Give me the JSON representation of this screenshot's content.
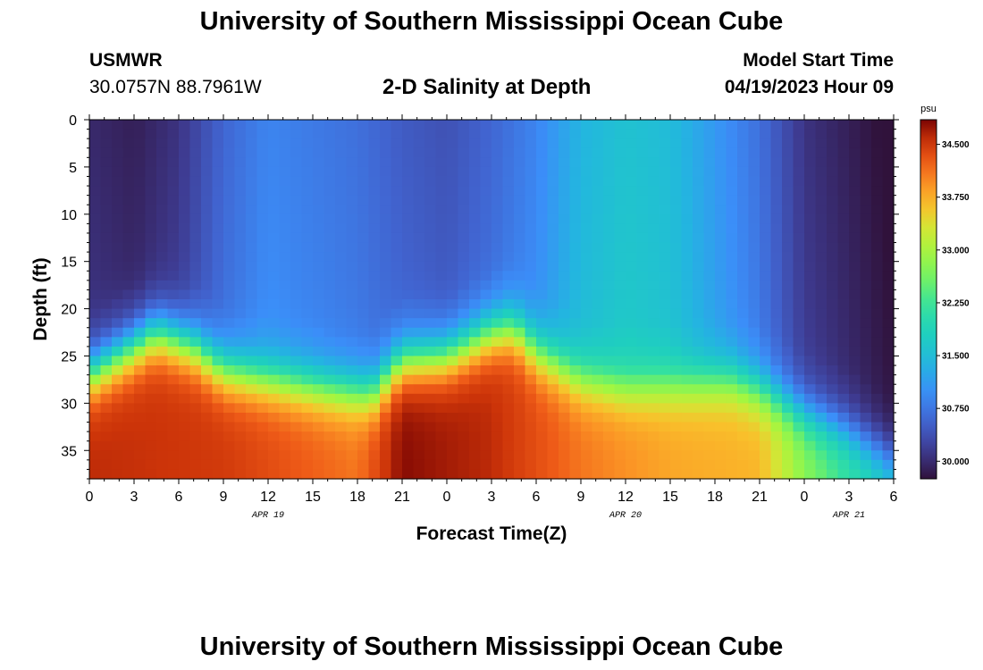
{
  "header": {
    "title": "University of Southern Mississippi Ocean Cube",
    "station": "USMWR",
    "coords": "30.0757N  88.7961W",
    "plot_title": "2-D Salinity at Depth",
    "start_label": "Model Start Time",
    "start_time": "04/19/2023 Hour 09"
  },
  "footer": {
    "title": "University of Southern Mississippi Ocean Cube"
  },
  "chart_data": {
    "type": "heatmap",
    "title": "2-D Salinity at Depth",
    "xlabel": "Forecast Time(Z)",
    "ylabel": "Depth (ft)",
    "x_tick_labels": [
      "0",
      "3",
      "6",
      "9",
      "12",
      "15",
      "18",
      "21",
      "0",
      "3",
      "6",
      "9",
      "12",
      "15",
      "18",
      "21",
      "0",
      "3",
      "6"
    ],
    "x_hours": [
      0,
      3,
      6,
      9,
      12,
      15,
      18,
      21,
      24,
      27,
      30,
      33,
      36,
      39,
      42,
      45,
      48,
      51,
      54
    ],
    "xlim": [
      0,
      54
    ],
    "date_labels": [
      {
        "label": "APR 19",
        "hour": 12
      },
      {
        "label": "APR 20",
        "hour": 36
      },
      {
        "label": "APR 21",
        "hour": 51
      }
    ],
    "y_ticks": [
      0,
      5,
      10,
      15,
      20,
      25,
      30,
      35
    ],
    "ylim": [
      0,
      38
    ],
    "y_inverted": true,
    "colorbar": {
      "unit": "psu",
      "range": [
        29.75,
        34.85
      ],
      "ticks": [
        30.0,
        30.75,
        31.5,
        32.25,
        33.0,
        33.75,
        34.5
      ],
      "tick_labels": [
        "30.000",
        "30.750",
        "31.500",
        "32.250",
        "33.000",
        "33.750",
        "34.500"
      ]
    },
    "model": {
      "grid": {
        "nx": 72,
        "ny": 38,
        "dx_hours": 0.75,
        "dy_ft": 1
      },
      "halocline_depth_ft": [
        [
          0,
          27
        ],
        [
          2,
          25
        ],
        [
          4.5,
          22.5
        ],
        [
          7,
          24
        ],
        [
          9,
          26.5
        ],
        [
          12,
          27.5
        ],
        [
          16,
          28.5
        ],
        [
          19,
          29
        ],
        [
          21,
          25.5
        ],
        [
          24,
          25
        ],
        [
          27,
          22.5
        ],
        [
          28.5,
          22
        ],
        [
          30,
          24.5
        ],
        [
          33,
          27.5
        ],
        [
          36,
          28.5
        ],
        [
          40,
          28
        ],
        [
          43,
          27.5
        ],
        [
          45,
          28.5
        ],
        [
          48,
          31
        ],
        [
          51,
          33
        ],
        [
          54,
          36
        ]
      ],
      "upper_salinity_psu": [
        [
          0,
          30.1
        ],
        [
          3,
          30.0
        ],
        [
          6,
          30.2
        ],
        [
          9,
          30.7
        ],
        [
          12,
          31.0
        ],
        [
          15,
          30.9
        ],
        [
          18,
          30.8
        ],
        [
          21,
          30.6
        ],
        [
          24,
          30.5
        ],
        [
          27,
          30.7
        ],
        [
          30,
          31.0
        ],
        [
          33,
          31.5
        ],
        [
          36,
          31.7
        ],
        [
          39,
          31.6
        ],
        [
          42,
          31.2
        ],
        [
          45,
          30.8
        ],
        [
          48,
          30.2
        ],
        [
          51,
          30.0
        ],
        [
          54,
          29.8
        ]
      ],
      "bottom_salinity_psu": [
        [
          0,
          34.6
        ],
        [
          9,
          34.5
        ],
        [
          18,
          34.1
        ],
        [
          21,
          34.8
        ],
        [
          27,
          34.6
        ],
        [
          33,
          34.1
        ],
        [
          39,
          33.8
        ],
        [
          45,
          33.7
        ],
        [
          48,
          32.8
        ],
        [
          51,
          32.2
        ],
        [
          54,
          31.8
        ]
      ]
    }
  }
}
